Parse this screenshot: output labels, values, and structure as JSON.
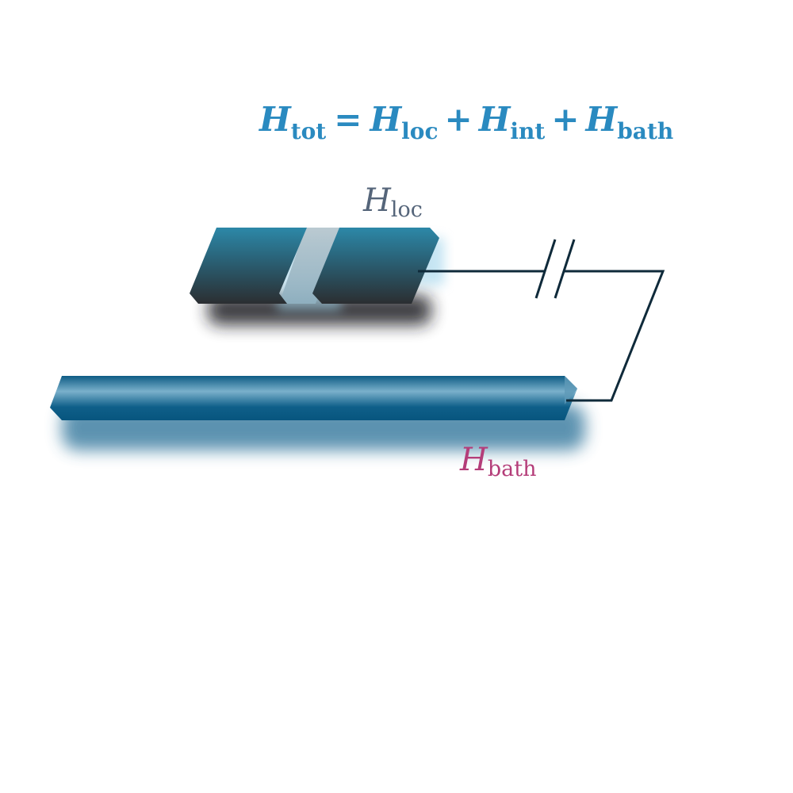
{
  "equation": {
    "lhs_symbol": "H",
    "lhs_sub": "tot",
    "equals": "=",
    "terms": [
      {
        "symbol": "H",
        "sub": "loc"
      },
      {
        "symbol": "H",
        "sub": "int"
      },
      {
        "symbol": "H",
        "sub": "bath"
      }
    ],
    "plus": "+"
  },
  "labels": {
    "loc": {
      "symbol": "H",
      "sub": "loc"
    },
    "bath": {
      "symbol": "H",
      "sub": "bath"
    }
  },
  "colors": {
    "equation": "#2a8ac0",
    "loc_label": "#55657a",
    "bath_label": "#b43d79",
    "wire": "#0f2a3a",
    "block_top": "#2a86a6",
    "block_bottom": "#2b2f33",
    "gap": "#9fb4bf",
    "bath_dark": "#0c5a83",
    "bath_light": "#7fb3cc"
  }
}
